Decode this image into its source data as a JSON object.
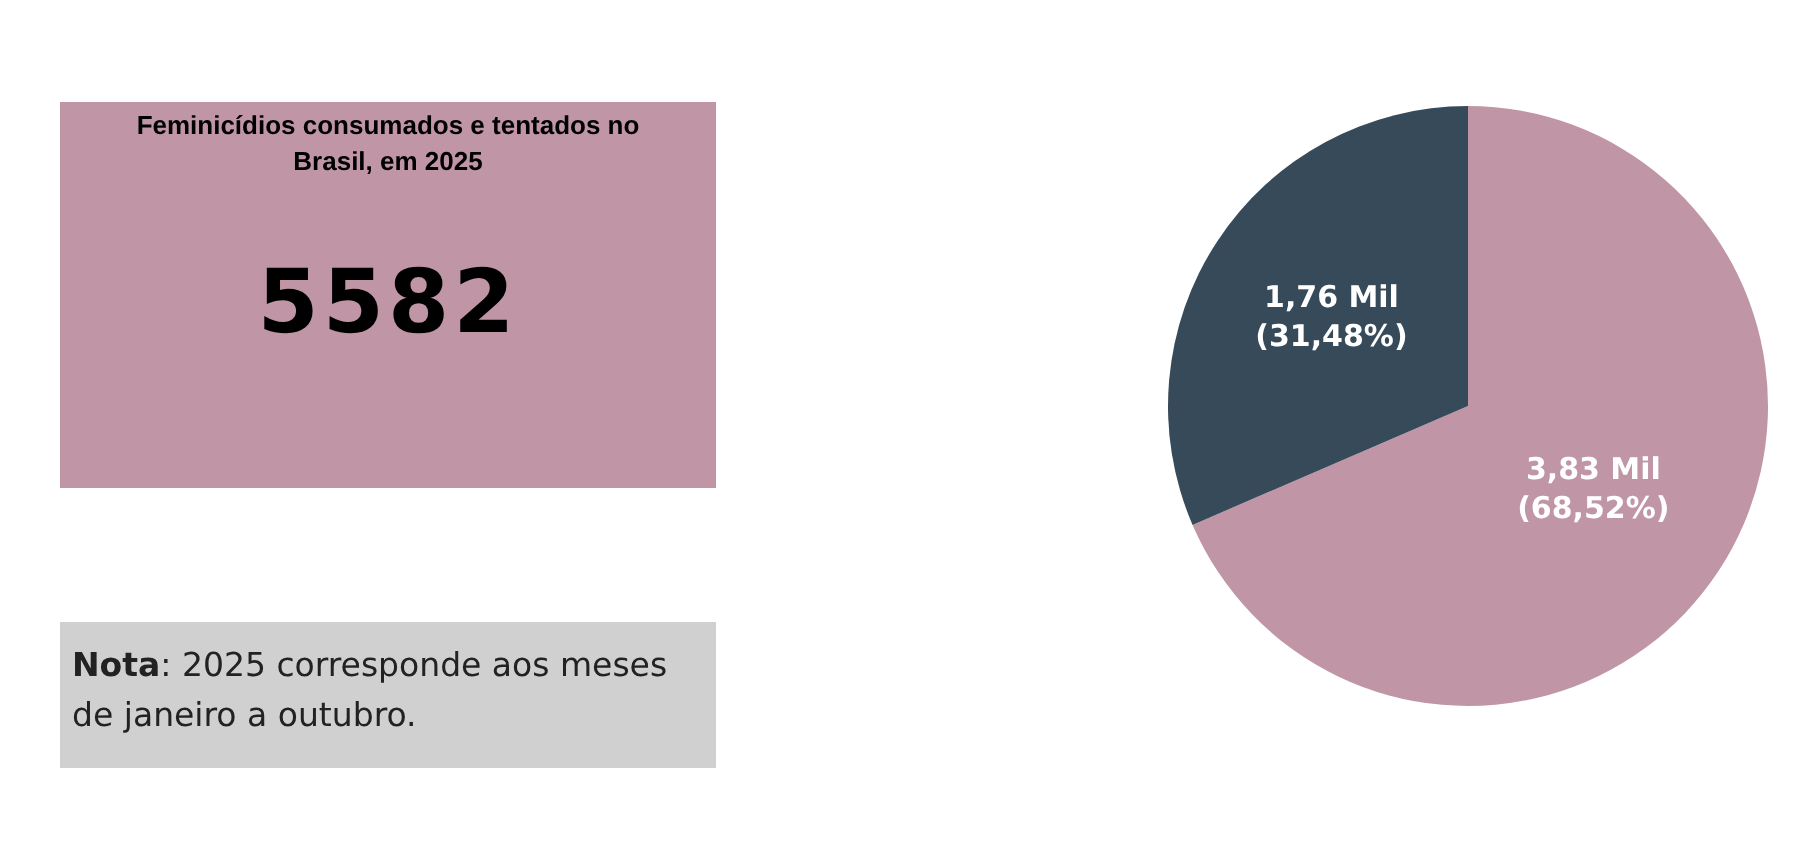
{
  "chart_data": [
    {
      "type": "other",
      "title": "Feminicídios consumados e tentados no Brasil, em 2025",
      "annotations": [
        "5582",
        "Nota: 2025 corresponde aos meses de janeiro a outubro."
      ],
      "color": "#c096a6"
    },
    {
      "type": "pie",
      "categories": [
        null,
        null
      ],
      "values": [
        3.83,
        1.76
      ],
      "colors": [
        "#c096a6",
        "#374a5a"
      ],
      "value_labels": [
        "3,83 Mil\n(68,52%)",
        "1,76 Mil\n(31,48%)"
      ],
      "legend": false
    }
  ]
}
